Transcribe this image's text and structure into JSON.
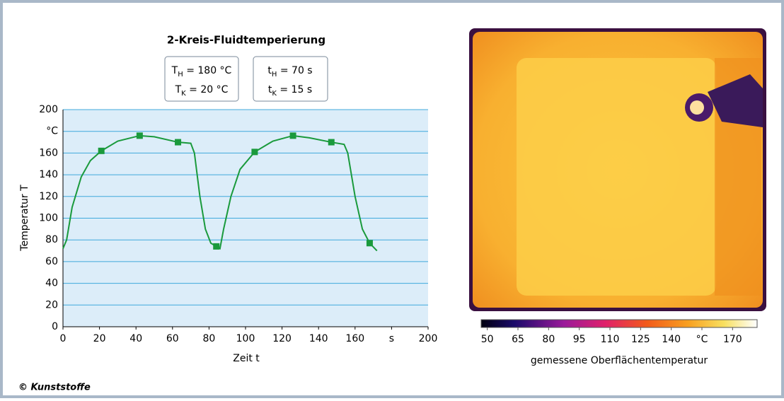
{
  "chart_data": {
    "type": "line",
    "title": "2-Kreis-Fluidtemperierung",
    "annotations": [
      [
        {
          "symbol": "T",
          "sub": "H",
          "rest": " = 180 °C"
        },
        {
          "symbol": "T",
          "sub": "K",
          "rest": " = 20 °C"
        }
      ],
      [
        {
          "symbol": "t",
          "sub": "H",
          "rest": " = 70 s"
        },
        {
          "symbol": "t",
          "sub": "K",
          "rest": " = 15 s"
        }
      ]
    ],
    "x_label": "Zeit t",
    "y_label": "Temperatur T",
    "color": "#1a9a3c",
    "x": [
      0,
      2,
      5,
      10,
      15,
      21,
      30,
      42,
      50,
      63,
      70,
      72,
      75,
      78,
      81,
      84,
      86,
      88,
      92,
      97,
      105,
      115,
      126,
      135,
      147,
      154,
      156,
      160,
      164,
      168,
      172
    ],
    "values": [
      72,
      80,
      110,
      138,
      153,
      162,
      171,
      176,
      175,
      170,
      169,
      160,
      120,
      90,
      77,
      74,
      72,
      90,
      120,
      145,
      161,
      171,
      176,
      174,
      170,
      168,
      160,
      120,
      90,
      77,
      70
    ],
    "markers": {
      "x": [
        21,
        42,
        63,
        84,
        105,
        126,
        147,
        168
      ],
      "values": [
        162,
        176,
        170,
        74,
        161,
        176,
        170,
        77
      ]
    },
    "xlim": [
      0,
      200
    ],
    "ylim": [
      0,
      200
    ],
    "xticks": [
      0,
      20,
      40,
      60,
      80,
      100,
      120,
      140,
      160,
      {
        "value": 180,
        "label": "s"
      },
      200
    ],
    "yticks": [
      0,
      20,
      40,
      60,
      80,
      100,
      120,
      140,
      160,
      {
        "value": 180,
        "label": "°C"
      },
      200
    ],
    "grid": true,
    "colorbar": {
      "label": "gemessene Oberflächentemperatur",
      "clim": [
        47,
        182
      ],
      "ticks": [
        50,
        65,
        80,
        95,
        110,
        125,
        140,
        {
          "value": 155,
          "label": "°C"
        },
        170
      ]
    },
    "credit": "© Kunststoffe"
  }
}
